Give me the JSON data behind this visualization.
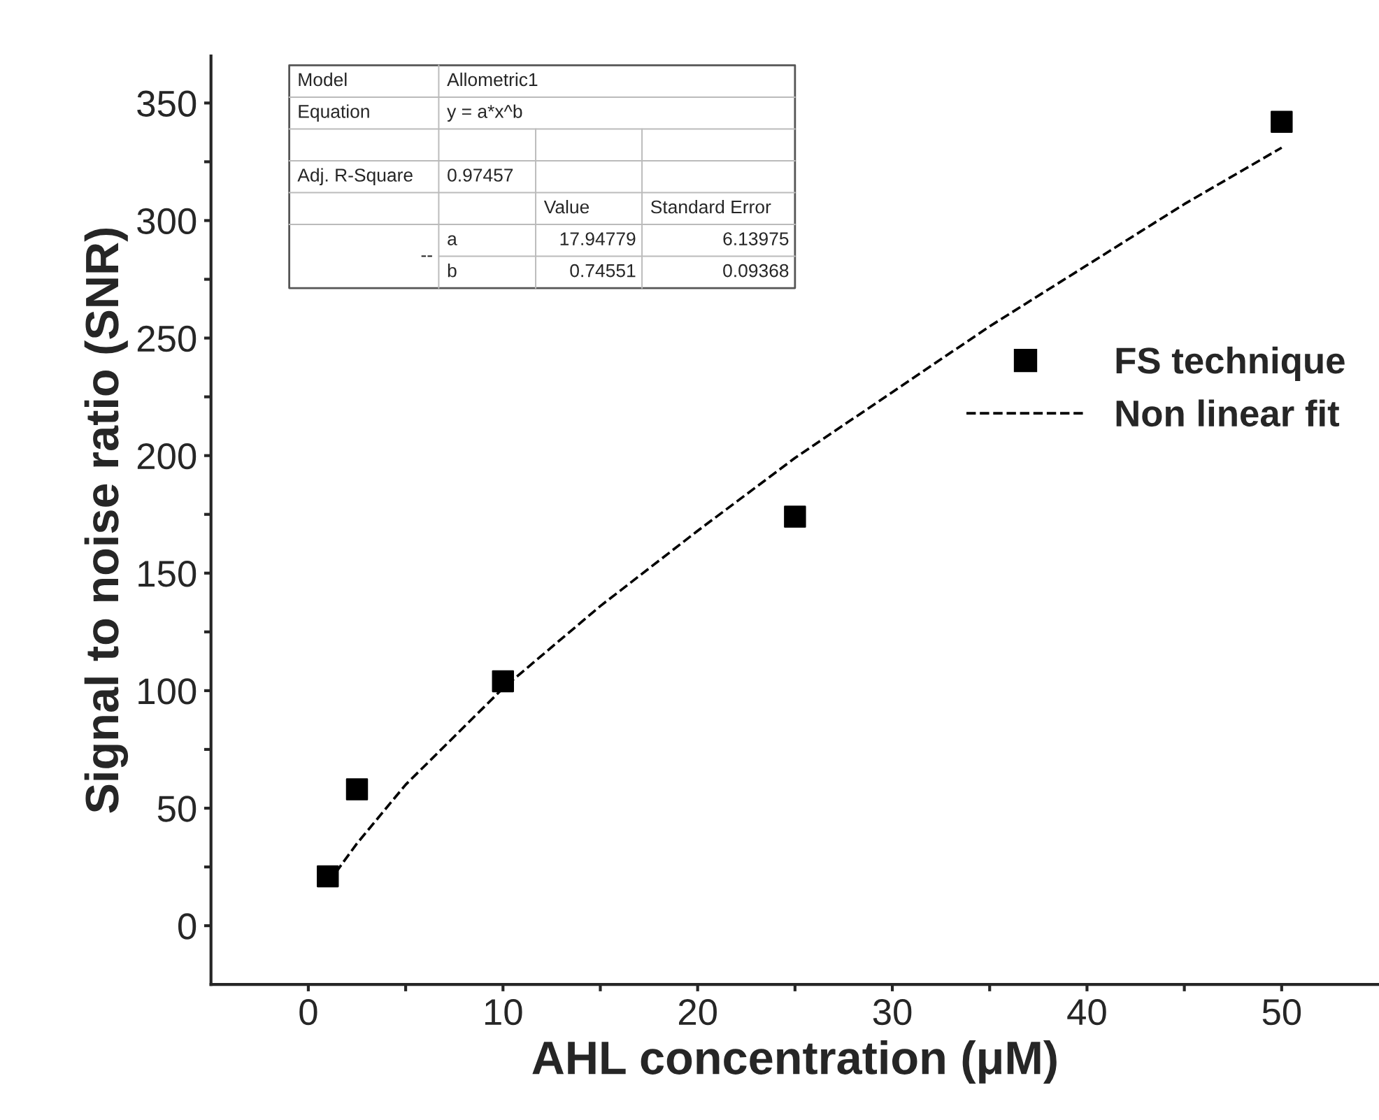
{
  "chart_data": {
    "type": "scatter",
    "xlabel": "AHL concentration (μM)",
    "ylabel": "Signal to noise ratio (SNR)",
    "xlim": [
      -5,
      55
    ],
    "ylim": [
      -25,
      370
    ],
    "xticks": [
      0,
      {
        "value": 5,
        "label": null
      },
      10,
      {
        "value": 15,
        "label": null
      },
      20,
      {
        "value": 25,
        "label": null
      },
      30,
      {
        "value": 35,
        "label": null
      },
      40,
      {
        "value": 45,
        "label": null
      },
      50
    ],
    "yticks": [
      0,
      {
        "value": 25,
        "label": null
      },
      50,
      {
        "value": 75,
        "label": null
      },
      100,
      {
        "value": 125,
        "label": null
      },
      150,
      {
        "value": 175,
        "label": null
      },
      200,
      {
        "value": 225,
        "label": null
      },
      250,
      {
        "value": 275,
        "label": null
      },
      300,
      {
        "value": 325,
        "label": null
      },
      350
    ],
    "grid": false,
    "legend": "right",
    "series": [
      {
        "name": "FS technique",
        "marker": "square",
        "color": "#000000",
        "x": [
          1,
          2.5,
          10,
          25,
          50
        ],
        "values": [
          21,
          58,
          104,
          174,
          342
        ]
      },
      {
        "name": "Non linear fit",
        "type": "line",
        "line_style": "dashed",
        "color": "#000000",
        "x": [
          1,
          2.5,
          5,
          10,
          15,
          20,
          25,
          30,
          35,
          40,
          45,
          50
        ],
        "values": [
          18,
          35,
          60,
          101,
          136,
          168,
          199,
          227,
          255,
          281,
          307,
          331
        ]
      }
    ],
    "annotations": [
      "Model",
      "Allometric1",
      "Equation",
      "y = a*x^b",
      "Adj. R-Square",
      "0.97457",
      "Value",
      "Standard Error",
      "--",
      "a",
      "17.94779",
      "6.13975",
      "b",
      "0.74551",
      "0.09368"
    ]
  }
}
